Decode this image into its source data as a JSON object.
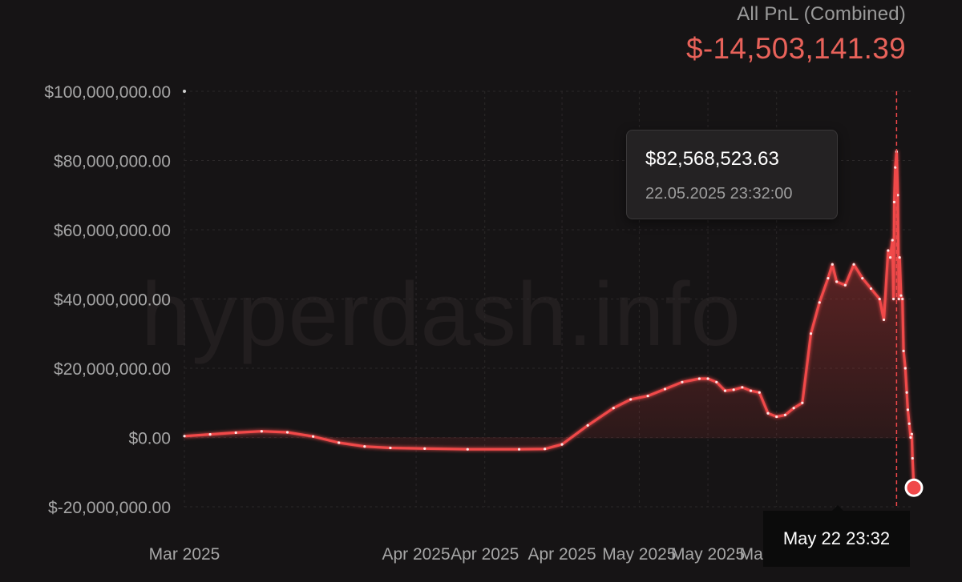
{
  "header": {
    "label": "All PnL (Combined)",
    "value": "$-14,503,141.39"
  },
  "watermark": "hyperdash.info",
  "tooltip": {
    "value": "$82,568,523.63",
    "datetime": "22.05.2025 23:32:00"
  },
  "crosshair_label": "May 22 23:32",
  "colors": {
    "background": "#161415",
    "line": "#f0484a",
    "negative_value": "#e8625a"
  },
  "chart_data": {
    "type": "area",
    "title": "All PnL (Combined)",
    "ylim": [
      -20000000,
      100000000
    ],
    "yticks": [
      {
        "value": 100000000,
        "label": "$100,000,000.00"
      },
      {
        "value": 80000000,
        "label": "$80,000,000.00"
      },
      {
        "value": 60000000,
        "label": "$60,000,000.00"
      },
      {
        "value": 40000000,
        "label": "$40,000,000.00"
      },
      {
        "value": 20000000,
        "label": "$20,000,000.00"
      },
      {
        "value": 0,
        "label": "$0.00"
      },
      {
        "value": -20000000,
        "label": "$-20,000,000.00"
      }
    ],
    "xlim": [
      "2025-03-01",
      "2025-05-25"
    ],
    "xticks": [
      {
        "date": "2025-03-01",
        "label": "Mar 2025"
      },
      {
        "date": "2025-03-28",
        "label": "Apr 2025"
      },
      {
        "date": "2025-04-05",
        "label": "Apr 2025"
      },
      {
        "date": "2025-04-14",
        "label": "Apr 2025"
      },
      {
        "date": "2025-04-23",
        "label": "May 2025"
      },
      {
        "date": "2025-05-01",
        "label": "May 2025"
      },
      {
        "date": "2025-05-09",
        "label": "May 2025"
      }
    ],
    "grid": true,
    "series": [
      {
        "values": [
          [
            "2025-03-01",
            400000
          ],
          [
            "2025-03-04",
            900000
          ],
          [
            "2025-03-07",
            1400000
          ],
          [
            "2025-03-10",
            1800000
          ],
          [
            "2025-03-13",
            1500000
          ],
          [
            "2025-03-16",
            300000
          ],
          [
            "2025-03-19",
            -1500000
          ],
          [
            "2025-03-22",
            -2600000
          ],
          [
            "2025-03-25",
            -3000000
          ],
          [
            "2025-03-29",
            -3200000
          ],
          [
            "2025-04-03",
            -3400000
          ],
          [
            "2025-04-09",
            -3400000
          ],
          [
            "2025-04-12",
            -3300000
          ],
          [
            "2025-04-14",
            -2000000
          ],
          [
            "2025-04-17",
            3500000
          ],
          [
            "2025-04-20",
            8500000
          ],
          [
            "2025-04-22",
            11000000
          ],
          [
            "2025-04-24",
            12000000
          ],
          [
            "2025-04-26",
            14000000
          ],
          [
            "2025-04-28",
            16000000
          ],
          [
            "2025-04-30",
            17000000
          ],
          [
            "2025-05-01",
            17000000
          ],
          [
            "2025-05-02",
            16000000
          ],
          [
            "2025-05-03",
            13500000
          ],
          [
            "2025-05-04",
            13800000
          ],
          [
            "2025-05-05",
            14500000
          ],
          [
            "2025-05-06",
            13500000
          ],
          [
            "2025-05-07",
            13000000
          ],
          [
            "2025-05-08",
            7000000
          ],
          [
            "2025-05-09",
            6000000
          ],
          [
            "2025-05-10",
            6500000
          ],
          [
            "2025-05-11",
            8500000
          ],
          [
            "2025-05-12",
            10000000
          ],
          [
            "2025-05-13",
            30000000
          ],
          [
            "2025-05-14",
            39000000
          ],
          [
            "2025-05-15",
            46000000
          ],
          [
            "2025-05-15T12:00",
            50000000
          ],
          [
            "2025-05-16",
            45000000
          ],
          [
            "2025-05-17",
            44000000
          ],
          [
            "2025-05-18",
            50000000
          ],
          [
            "2025-05-19",
            46000000
          ],
          [
            "2025-05-20",
            43000000
          ],
          [
            "2025-05-21",
            40000000
          ],
          [
            "2025-05-21T12:00",
            34000000
          ],
          [
            "2025-05-22",
            54000000
          ],
          [
            "2025-05-22T06:00",
            52000000
          ],
          [
            "2025-05-22T12:00",
            57000000
          ],
          [
            "2025-05-22T15:00",
            40000000
          ],
          [
            "2025-05-22T17:00",
            68000000
          ],
          [
            "2025-05-22T20:00",
            78000000
          ],
          [
            "2025-05-22T23:32",
            82568523.63
          ],
          [
            "2025-05-23T03:00",
            70000000
          ],
          [
            "2025-05-23T06:00",
            40000000
          ],
          [
            "2025-05-23T08:00",
            52000000
          ],
          [
            "2025-05-23T12:00",
            41000000
          ],
          [
            "2025-05-23T16:00",
            40000000
          ],
          [
            "2025-05-23T19:00",
            25000000
          ],
          [
            "2025-05-24",
            20000000
          ],
          [
            "2025-05-24T04:00",
            13000000
          ],
          [
            "2025-05-24T07:00",
            8000000
          ],
          [
            "2025-05-24T11:00",
            4000000
          ],
          [
            "2025-05-24T15:00",
            0
          ],
          [
            "2025-05-24T18:00",
            1000000
          ],
          [
            "2025-05-24T20:00",
            -6000000
          ],
          [
            "2025-05-25",
            -14503141.39
          ]
        ]
      }
    ],
    "highlight": {
      "date": "2025-05-22T23:32",
      "value": 82568523.63
    }
  }
}
